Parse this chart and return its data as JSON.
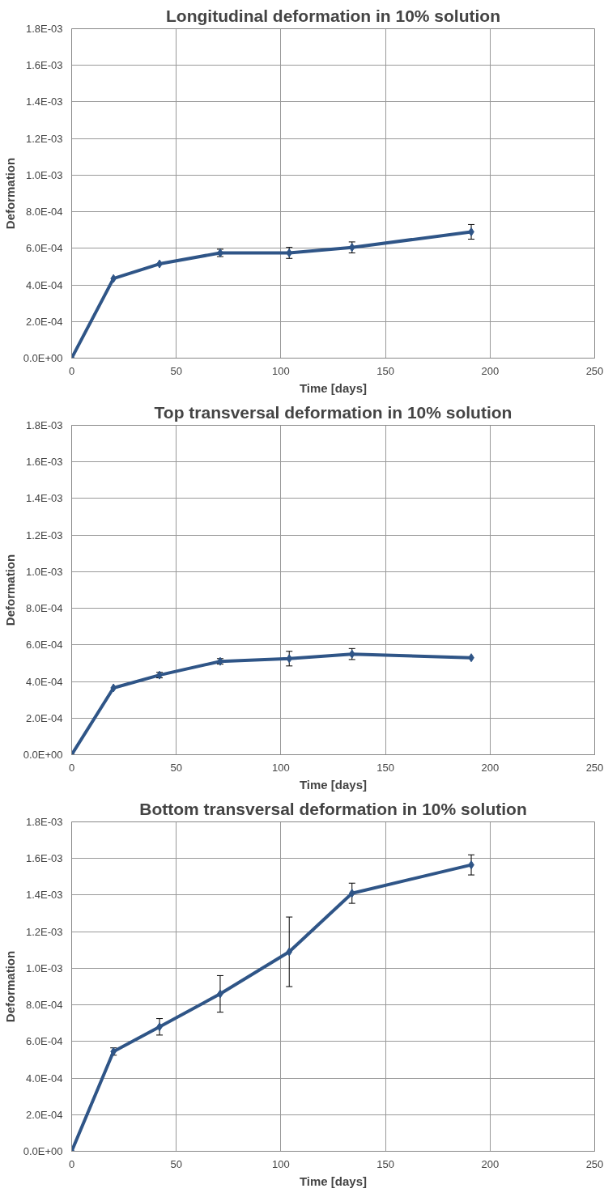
{
  "chart_data": [
    {
      "type": "line",
      "title": "Longitudinal deformation in 10% solution",
      "xlabel": "Time [days]",
      "ylabel": "Deformation",
      "x": [
        0,
        20,
        42,
        71,
        104,
        134,
        191
      ],
      "values": [
        0,
        0.000435,
        0.000515,
        0.000575,
        0.000575,
        0.000605,
        0.00069
      ],
      "errors": [
        null,
        null,
        null,
        2e-05,
        3e-05,
        3e-05,
        4e-05
      ],
      "color": "#2f5587",
      "marker": "diamond",
      "line_style": "solid",
      "grid": true,
      "xlim": [
        0,
        250
      ],
      "xticks": [
        0,
        50,
        100,
        150,
        200,
        250
      ],
      "ylim": [
        0,
        0.0018
      ],
      "yticks": [
        {
          "value": 0,
          "label": "0.0E+00"
        },
        {
          "value": 0.0002,
          "label": "2.0E-04"
        },
        {
          "value": 0.0004,
          "label": "4.0E-04"
        },
        {
          "value": 0.0006,
          "label": "6.0E-04"
        },
        {
          "value": 0.0008,
          "label": "8.0E-04"
        },
        {
          "value": 0.001,
          "label": "1.0E-03"
        },
        {
          "value": 0.0012,
          "label": "1.2E-03"
        },
        {
          "value": 0.0014,
          "label": "1.4E-03"
        },
        {
          "value": 0.0016,
          "label": "1.6E-03"
        },
        {
          "value": 0.0018,
          "label": "1.8E-03"
        }
      ]
    },
    {
      "type": "line",
      "title": "Top transversal deformation in 10% solution",
      "xlabel": "Time [days]",
      "ylabel": "Deformation",
      "x": [
        0,
        20,
        42,
        71,
        104,
        134,
        191
      ],
      "values": [
        0,
        0.000365,
        0.000435,
        0.00051,
        0.000525,
        0.00055,
        0.00053
      ],
      "errors": [
        null,
        null,
        1.5e-05,
        1.5e-05,
        4e-05,
        3e-05,
        null
      ],
      "color": "#2f5587",
      "marker": "diamond",
      "line_style": "solid",
      "grid": true,
      "xlim": [
        0,
        250
      ],
      "xticks": [
        0,
        50,
        100,
        150,
        200,
        250
      ],
      "ylim": [
        0,
        0.0018
      ],
      "yticks": [
        {
          "value": 0,
          "label": "0.0E+00"
        },
        {
          "value": 0.0002,
          "label": "2.0E-04"
        },
        {
          "value": 0.0004,
          "label": "4.0E-04"
        },
        {
          "value": 0.0006,
          "label": "6.0E-04"
        },
        {
          "value": 0.0008,
          "label": "8.0E-04"
        },
        {
          "value": 0.001,
          "label": "1.0E-03"
        },
        {
          "value": 0.0012,
          "label": "1.2E-03"
        },
        {
          "value": 0.0014,
          "label": "1.4E-03"
        },
        {
          "value": 0.0016,
          "label": "1.6E-03"
        },
        {
          "value": 0.0018,
          "label": "1.8E-03"
        }
      ]
    },
    {
      "type": "line",
      "title": "Bottom transversal deformation in 10% solution",
      "xlabel": "Time [days]",
      "ylabel": "Deformation",
      "x": [
        0,
        20,
        42,
        71,
        104,
        134,
        191
      ],
      "values": [
        0,
        0.000545,
        0.00068,
        0.00086,
        0.00109,
        0.00141,
        0.001565
      ],
      "errors": [
        null,
        2e-05,
        4.5e-05,
        0.0001,
        0.00019,
        5.5e-05,
        5.5e-05
      ],
      "color": "#2f5587",
      "marker": "diamond",
      "line_style": "solid",
      "grid": true,
      "xlim": [
        0,
        250
      ],
      "xticks": [
        0,
        50,
        100,
        150,
        200,
        250
      ],
      "ylim": [
        0,
        0.0018
      ],
      "yticks": [
        {
          "value": 0,
          "label": "0.0E+00"
        },
        {
          "value": 0.0002,
          "label": "2.0E-04"
        },
        {
          "value": 0.0004,
          "label": "4.0E-04"
        },
        {
          "value": 0.0006,
          "label": "6.0E-04"
        },
        {
          "value": 0.0008,
          "label": "8.0E-04"
        },
        {
          "value": 0.001,
          "label": "1.0E-03"
        },
        {
          "value": 0.0012,
          "label": "1.2E-03"
        },
        {
          "value": 0.0014,
          "label": "1.4E-03"
        },
        {
          "value": 0.0016,
          "label": "1.6E-03"
        },
        {
          "value": 0.0018,
          "label": "1.8E-03"
        }
      ]
    }
  ]
}
